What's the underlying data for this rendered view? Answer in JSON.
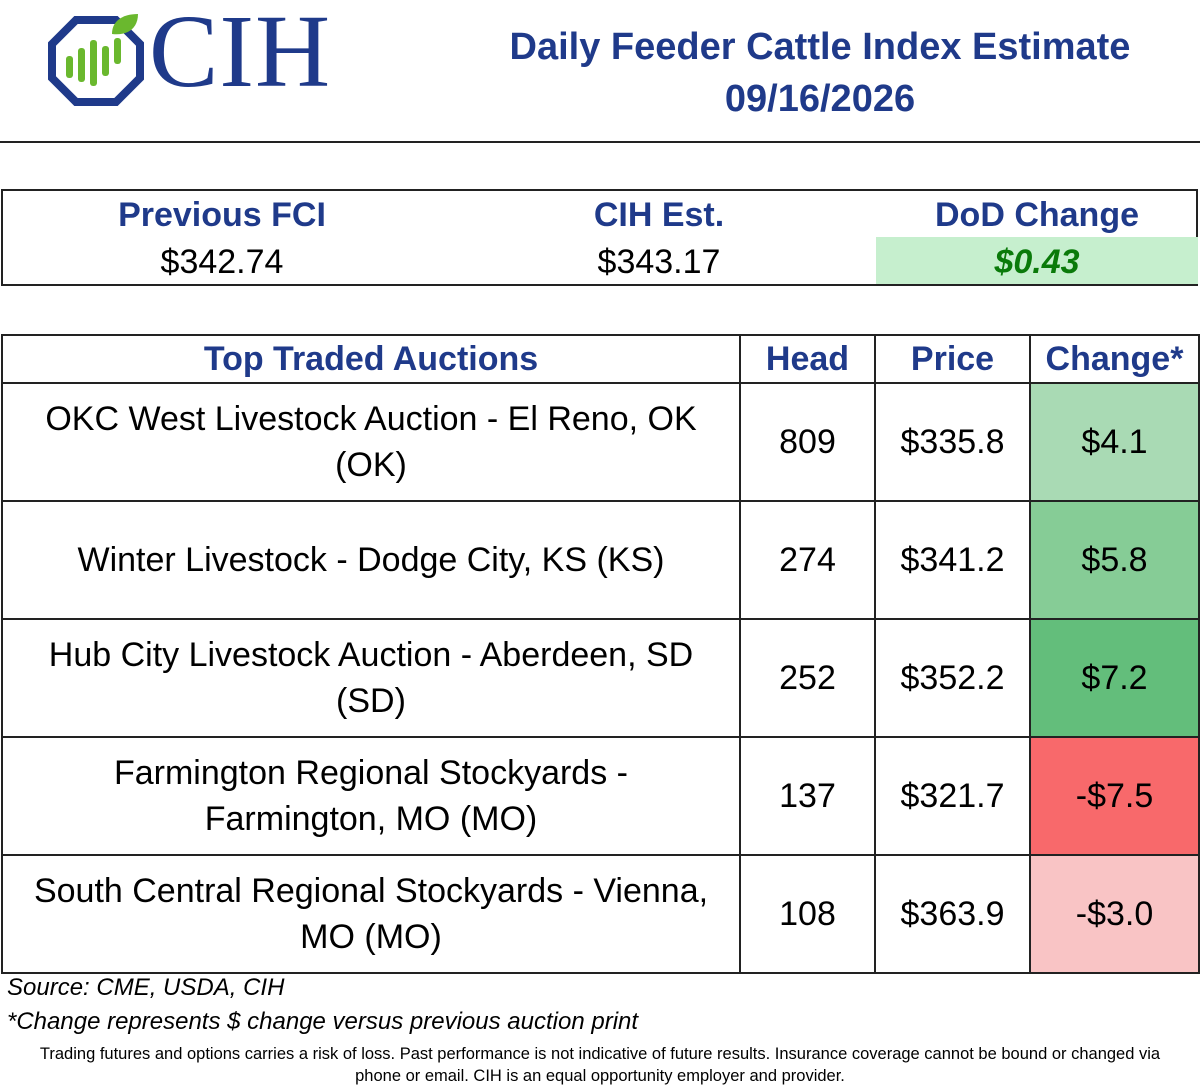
{
  "header": {
    "logo_text": "CIH",
    "title": "Daily Feeder Cattle Index Estimate",
    "date": "09/16/2026",
    "logo_colors": {
      "navy": "#1f3a8a",
      "green": "#6ab82e"
    }
  },
  "summary": {
    "previous_fci": {
      "label": "Previous FCI",
      "value": "$342.74"
    },
    "cih_est": {
      "label": "CIH Est.",
      "value": "$343.17"
    },
    "dod_change": {
      "label": "DoD Change",
      "value": "$0.43",
      "color": "#c6efce"
    }
  },
  "auctions": {
    "headers": {
      "name": "Top Traded Auctions",
      "head": "Head",
      "price": "Price",
      "change": "Change*"
    },
    "rows": [
      {
        "name_line1": "OKC West Livestock Auction  - El Reno, OK",
        "name_line2": "(OK)",
        "head": "809",
        "price": "$335.8",
        "change": "$4.1",
        "color": "#a9dab4"
      },
      {
        "name_line1": "Winter Livestock - Dodge City, KS (KS)",
        "name_line2": "",
        "head": "274",
        "price": "$341.2",
        "change": "$5.8",
        "color": "#86cc96"
      },
      {
        "name_line1": "Hub City Livestock Auction - Aberdeen, SD",
        "name_line2": "(SD)",
        "head": "252",
        "price": "$352.2",
        "change": "$7.2",
        "color": "#63be7b"
      },
      {
        "name_line1": "Farmington Regional Stockyards -",
        "name_line2": "Farmington, MO (MO)",
        "head": "137",
        "price": "$321.7",
        "change": "-$7.5",
        "color": "#f8696b"
      },
      {
        "name_line1": "South Central Regional Stockyards - Vienna,",
        "name_line2": "MO (MO)",
        "head": "108",
        "price": "$363.9",
        "change": "-$3.0",
        "color": "#f9c4c5"
      }
    ]
  },
  "footer": {
    "source": "Source: CME, USDA, CIH",
    "note": "*Change represents $ change versus previous auction print",
    "disclaimer_line1": "Trading futures and options carries a risk of loss. Past performance is not indicative of future results. Insurance coverage cannot be bound or changed via",
    "disclaimer_line2": "phone or email. CIH is an equal opportunity employer and provider."
  }
}
